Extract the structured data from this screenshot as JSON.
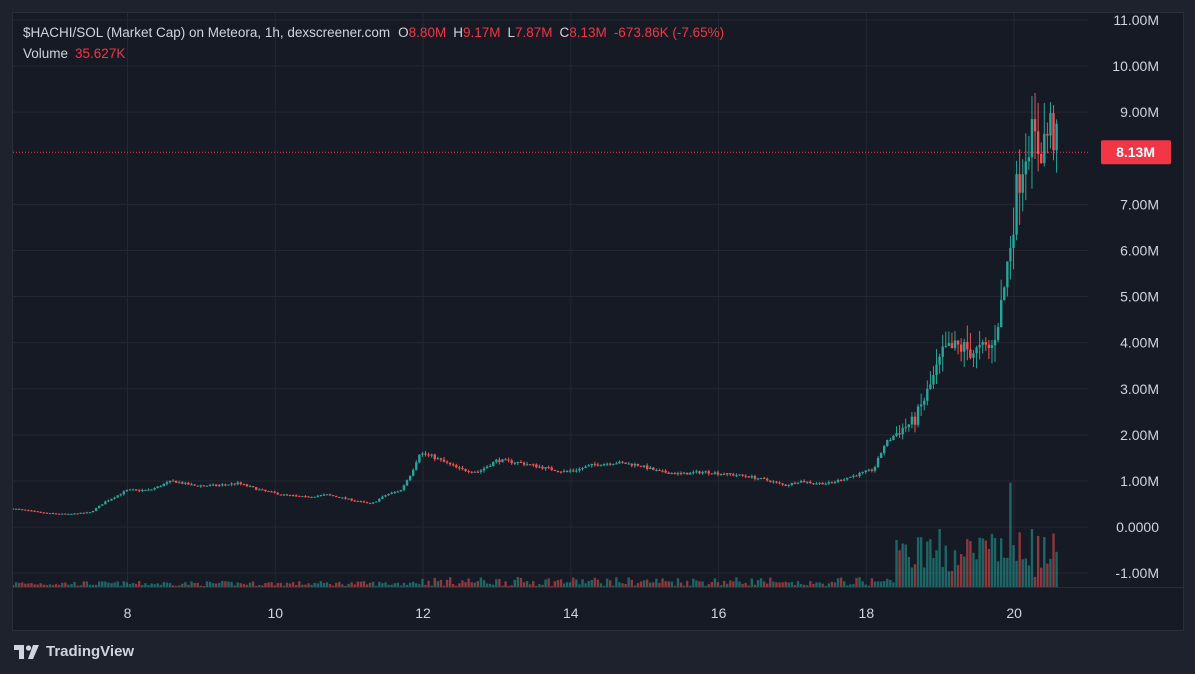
{
  "legend": {
    "symbol_text": "$HACHI/SOL (Market Cap) on Meteora, 1h, dexscreener.com",
    "open_label": "O",
    "open_value": "8.80M",
    "high_label": "H",
    "high_value": "9.17M",
    "low_label": "L",
    "low_value": "7.87M",
    "close_label": "C",
    "close_value": "8.13M",
    "change": "-673.86K (-7.65%)",
    "volume_label": "Volume",
    "volume_value": "35.627K"
  },
  "brand": {
    "name": "TradingView",
    "icon": "tradingview-logo-icon"
  },
  "colors": {
    "up": "#26a69a",
    "down": "#ef5350",
    "background": "#161a25",
    "grid": "#242833",
    "price_line": "#f23645"
  },
  "chart_data": {
    "type": "candlestick",
    "title": "$HACHI/SOL (Market Cap) on Meteora, 1h, dexscreener.com",
    "interval": "1h",
    "y_unit": "M",
    "y_ticks": [
      "11.00M",
      "10.00M",
      "9.00M",
      "7.00M",
      "6.00M",
      "5.00M",
      "4.00M",
      "3.00M",
      "2.00M",
      "1.00M",
      "0.0000",
      "-1.00M"
    ],
    "y_tick_values": [
      11,
      10,
      9,
      7,
      6,
      5,
      4,
      3,
      2,
      1,
      0,
      -1
    ],
    "ylim": [
      -1.3,
      11.15
    ],
    "x_ticks": [
      "8",
      "10",
      "12",
      "14",
      "16",
      "18",
      "20"
    ],
    "x_tick_days": [
      8,
      10,
      12,
      14,
      16,
      18,
      20
    ],
    "x_range_days": [
      6.45,
      21.0
    ],
    "last_price": 8.13,
    "last_price_label": "8.13M",
    "grid": true,
    "legend_position": "top-left",
    "close_path": [
      [
        6.45,
        0.4
      ],
      [
        6.9,
        0.3
      ],
      [
        7.2,
        0.28
      ],
      [
        7.5,
        0.32
      ],
      [
        7.7,
        0.55
      ],
      [
        8.0,
        0.8
      ],
      [
        8.3,
        0.8
      ],
      [
        8.6,
        1.0
      ],
      [
        8.9,
        0.9
      ],
      [
        9.2,
        0.9
      ],
      [
        9.5,
        0.95
      ],
      [
        9.8,
        0.8
      ],
      [
        10.1,
        0.7
      ],
      [
        10.4,
        0.65
      ],
      [
        10.7,
        0.7
      ],
      [
        11.0,
        0.6
      ],
      [
        11.3,
        0.5
      ],
      [
        11.5,
        0.7
      ],
      [
        11.7,
        0.8
      ],
      [
        11.85,
        1.2
      ],
      [
        11.95,
        1.6
      ],
      [
        12.1,
        1.55
      ],
      [
        12.3,
        1.4
      ],
      [
        12.5,
        1.25
      ],
      [
        12.75,
        1.2
      ],
      [
        13.0,
        1.45
      ],
      [
        13.3,
        1.4
      ],
      [
        13.6,
        1.3
      ],
      [
        13.9,
        1.2
      ],
      [
        14.1,
        1.25
      ],
      [
        14.3,
        1.35
      ],
      [
        14.6,
        1.4
      ],
      [
        14.9,
        1.35
      ],
      [
        15.2,
        1.2
      ],
      [
        15.5,
        1.15
      ],
      [
        15.8,
        1.2
      ],
      [
        16.1,
        1.15
      ],
      [
        16.4,
        1.1
      ],
      [
        16.7,
        1.0
      ],
      [
        16.9,
        0.9
      ],
      [
        17.1,
        1.0
      ],
      [
        17.3,
        0.95
      ],
      [
        17.5,
        0.95
      ],
      [
        17.7,
        1.05
      ],
      [
        17.9,
        1.15
      ],
      [
        18.1,
        1.25
      ],
      [
        18.25,
        1.8
      ],
      [
        18.45,
        2.1
      ],
      [
        18.65,
        2.3
      ],
      [
        18.85,
        3.0
      ],
      [
        19.05,
        3.8
      ],
      [
        19.25,
        3.9
      ],
      [
        19.5,
        3.8
      ],
      [
        19.7,
        3.9
      ],
      [
        19.85,
        5.0
      ],
      [
        19.95,
        6.2
      ],
      [
        20.05,
        7.5
      ],
      [
        20.2,
        8.5
      ],
      [
        20.35,
        8.2
      ],
      [
        20.5,
        8.7
      ],
      [
        20.6,
        8.13
      ]
    ],
    "volume_spikes": [
      [
        19.95,
        1.8
      ],
      [
        19.55,
        0.85
      ],
      [
        19.0,
        1.0
      ],
      [
        20.25,
        1.0
      ],
      [
        18.5,
        0.75
      ]
    ]
  }
}
